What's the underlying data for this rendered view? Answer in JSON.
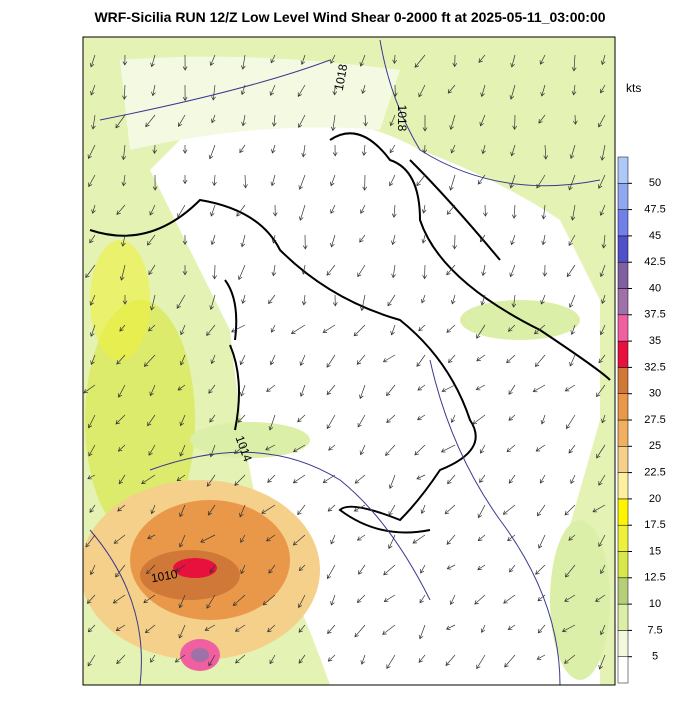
{
  "title": "WRF-Sicilia RUN 12/Z Low Level Wind Shear 0-2000 ft at 2025-05-11_03:00:00",
  "colorbar": {
    "unit": "kts",
    "ticks": [
      5,
      7.5,
      10,
      12.5,
      15,
      17.5,
      20,
      22.5,
      25,
      27.5,
      30,
      32.5,
      35,
      37.5,
      40,
      42.5,
      45,
      47.5,
      50
    ],
    "colors": [
      "#ffffff",
      "#f2f9dc",
      "#dcefa8",
      "#b4cf78",
      "#d8e84c",
      "#eef03c",
      "#fff500",
      "#fff0a0",
      "#f5d08a",
      "#f0b060",
      "#e89848",
      "#d07838",
      "#e8103c",
      "#f060a0",
      "#a070a8",
      "#8060a0",
      "#5050c8",
      "#7080e8",
      "#90a8f0",
      "#b0c8f8"
    ]
  },
  "contour_labels": [
    "1018",
    "1018",
    "1014",
    "1010"
  ]
}
